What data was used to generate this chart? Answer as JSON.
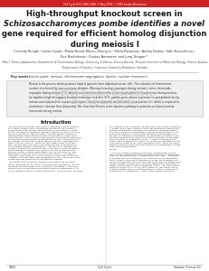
{
  "journal_line": "Cell Cycle 9:10 1860-1866; 1 May 2010; © 2010 Landes Bioscience",
  "title_line1": "High-throughput knockout screen in",
  "title_line2": "Schizosaccharomyces pombe identifies a novel",
  "title_line3": "gene required for efficient homolog disjunction",
  "title_line4": "during meiosis I",
  "authors": "Cornelia Rumpf,¹ Lubos Cipak,² Maria Novak-Mora,² Zhong Li,¹ Silvia Polakova,² Andrej Dudas,² Vabi Kovacikova,²\nEva Riadnikova,² Gustav Ammerer¹ and Juraj Gregan¹*",
  "affiliations": "¹Max F. Perutz Laboratories, Department of Chromosome Biology, University of Vienna, Vienna, Austria; ²Research Institute of Molecular Biology, Vienna, Austria;\n³Department of Genetics, Comenius University Bratislava, Slovakia",
  "keywords_label": "Key words:",
  "keywords_text": "fission yeast, meiosis, chromosome segregation, dynein, nuclear movement",
  "abstract_text": "Meiosis is the process which produces haploid gametes from diploid precursor cells. The reduction of chromosome\nnumber is achieved by two successive divisions. Whereas homologs segregate during meiosis I, sister chromatids\nsegregate during meiosis II. To identify novel proteins required for proper segregation of chromosomes during meiosis,\nwe applied a high-throughput knockout technique to delete 92 S. pombe genes whose expression is upregulated during\nmeiosis and analyzed the mutant phenotypes. Using this approach we identified a new protein, Dtl, which is required for\ncentromere cohesion from disjunction. We show that Dtl acts in the dynamin pathway to promote oscillatory nuclear\nmovement during meiosis.",
  "watermark_line1": "©2010 Landes Bioscience.",
  "watermark_line2": "Do not distribute.",
  "intro_heading": "Introduction",
  "intro_col_left": "The reduction of chromosome number during meiosis is achieved\nby a single round of DNA replication followed by two rounds of\nchromosome segregation, called meiosis II and meiosis II. While\nthe second meiotic division is similar to mitosis in that sister chro-\nmatids segregate to opposite poles, the first meiotic division is\nfundamentally different and ensures segregation of homologous\nchromosomes. Polo1b and Polo1ba domains need their chromosome\nsegregation during meiosis is determined by special properties of\nthe meiotic chromosomes rather than by specific components at\nother cytosolic factors.¹ There are three major features of mei-\notic chromosomes and their associated proteins responsible for\ntheir unique meiotic I segregation.¹² The first is recombination\nin which homologous chromosomes cross over to form chiasmata\nand to designate hopaloes for disjunction. The second meiosis-\nspecific feature is mono-orientation of sister kinetochores. The\nthird meiosis-specific feature is the protection of centromeric\ncohesion. Disturbing any of these processes may lead to non-dis-\njunction of chromosomes and aneuploidy, which is the major cause\nof miscarriages and mental retardation in humans.\n\nThe fission yeast Schizosaccharomyces pombe is an excellent\nmodel organism for the study of chromosome segregation, as it is\namenable to both genetic and cell biology techniques. Moreover,\nfission yeast chromosomes have large complex centromeric struc-\ntures, similar to those of higher eukaryotes.¹ We have been studying",
  "intro_col_right": "the consequences on meiotic chromosome segregation of deleting\nS. pombe genes whose mRNAs were upregulated during meiosis,\narguing that meiotic regulators governing the aforementioned\nprocesses would be preferentially expressed during meiosis. We\npreviously deleted 100 genes and identified new regulators of\nmeiotic chromosome segregation, including the promoter of cen-\ntromere cohesion Sgo1 and a new protein required for the initia-\ntion of meiotic recombination Mde2.¹¹ Maria Castellanos et al.\nused a similar approach to delete 100 genes and identified seven\nnovel genes required for critical meiotic events.¹ Here we report\ndeletion and phenotypical characterization of additional 92 meiot-\nically upregulated genes.\n\nResults\n\nA screen for genes required for meiotic chromosome segrega-\ntion. We have designed a high-throughput strategy to knock out\ngenes in the fission yeast S. pombe on a large scale.¹¹ In addition\nto its high knockout efficiency, our strategy has the advantage\nthat a library of knockout plasmids is reused. The plasmids are\nfreely available and can be used to knockout genes in strains with\nvarious genetic backgrounds. Here we applied this technique to\ndelete selected meiotically upregulated genes.¹¹ We were able to\ndelete 85 genes out of 92 selected (Table S1). The genes which\nresisted deletion may be essential genes or genes refractory to\nhomologous recombination.¹¹ Two of these genes have been",
  "page_number": "1860",
  "journal_footer": "Cell Cycle",
  "volume_footer": "Volume 9 Issue 10",
  "red_bar_color": "#cc2222",
  "title_color": "#1a1a1a",
  "text_color": "#333333",
  "abstract_bg": "#efefef",
  "background_color": "#ffffff"
}
